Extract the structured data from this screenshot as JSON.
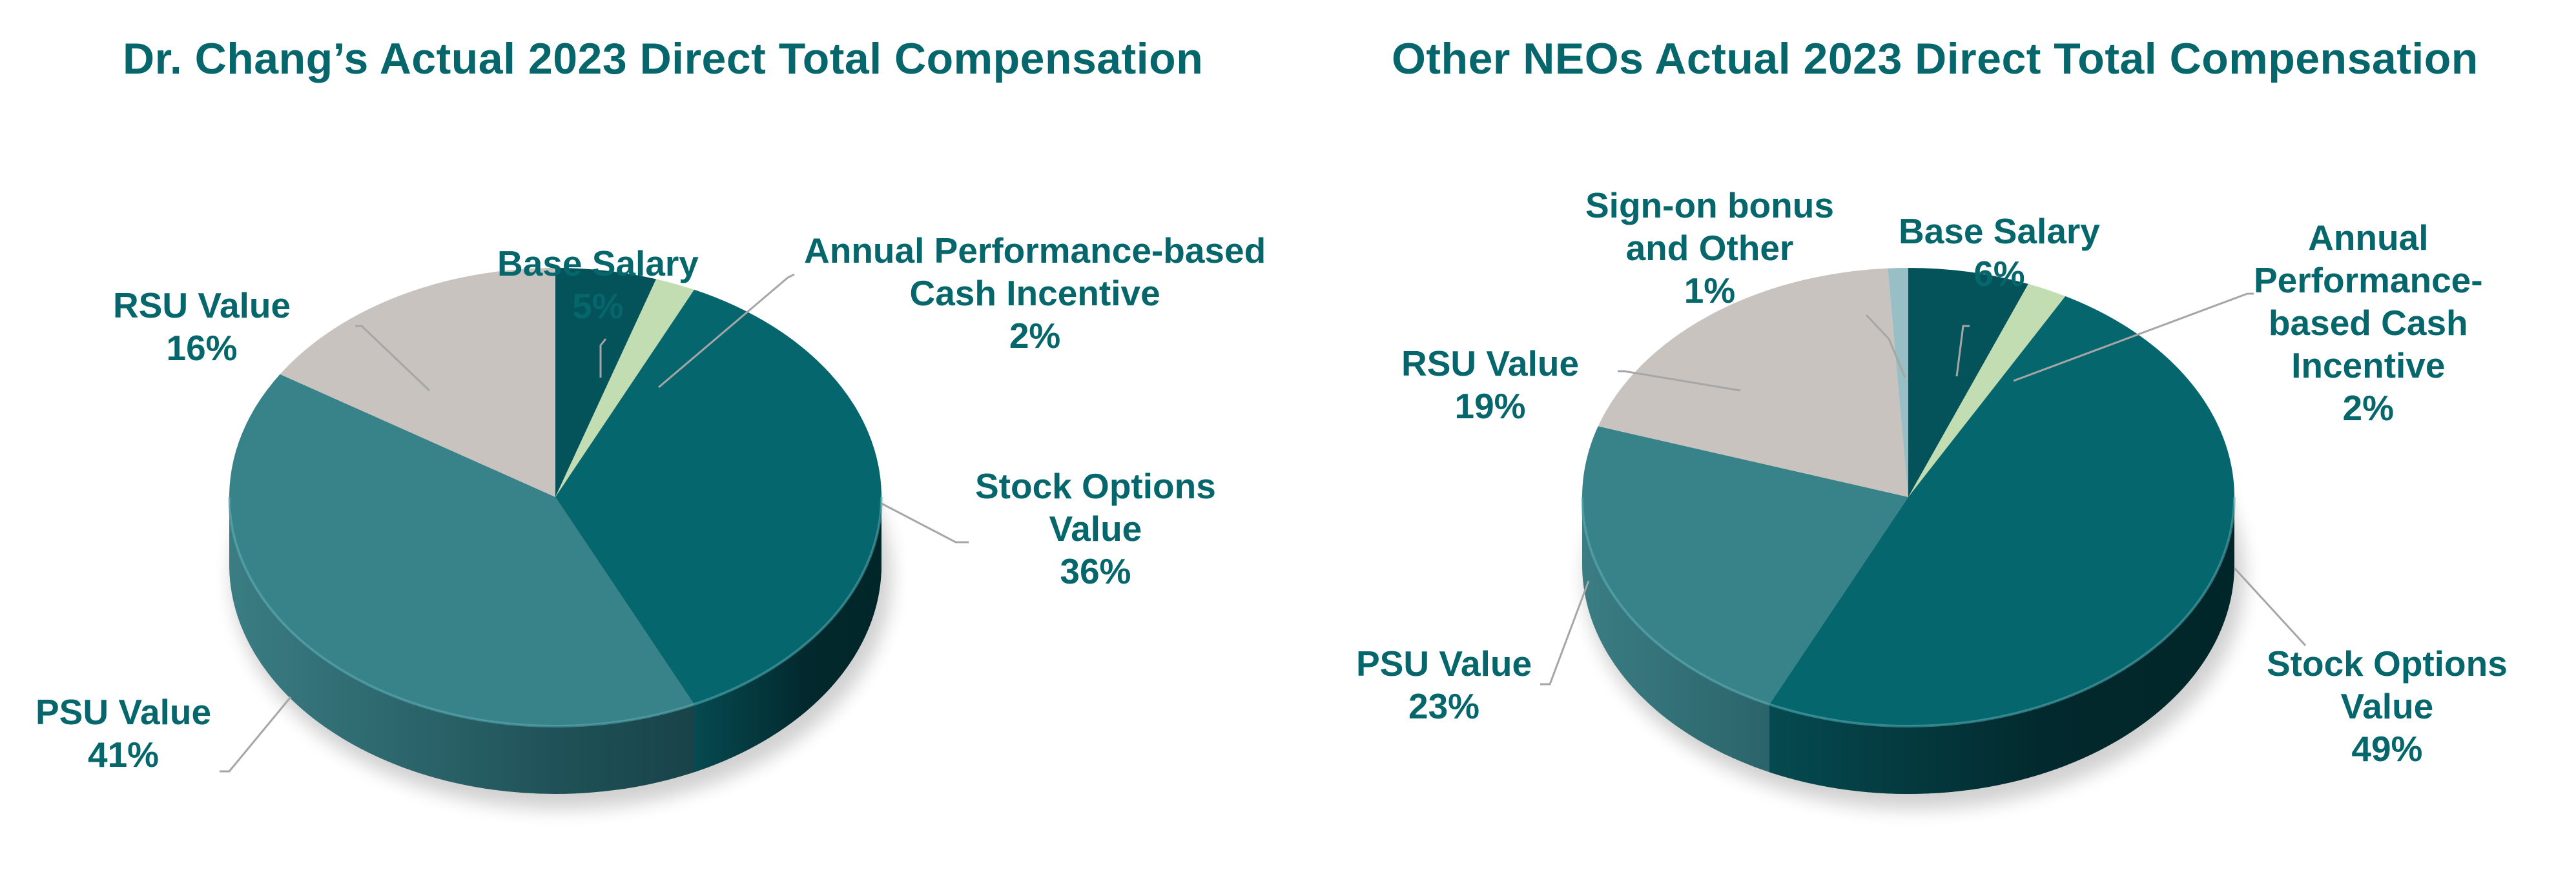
{
  "colors": {
    "title": "#05666b",
    "label": "#05666b",
    "base_salary": "#04525a",
    "annual_incentive": "#c3ddb3",
    "stock_options": "#06666d",
    "psu": "#38828a",
    "rsu": "#c9c3bf",
    "sign_on": "#97bfc5",
    "leader": "#a6a6a6"
  },
  "left": {
    "title": "Dr. Chang’s Actual 2023 Direct Total Compensation",
    "labels": {
      "base_salary": {
        "name": "Base Salary",
        "pct": "5%"
      },
      "annual_incentive": {
        "line1": "Annual Performance-based",
        "line2": "Cash Incentive",
        "pct": "2%"
      },
      "stock_options": {
        "line1": "Stock Options",
        "line2": "Value",
        "pct": "36%"
      },
      "psu": {
        "name": "PSU Value",
        "pct": "41%"
      },
      "rsu": {
        "name": "RSU Value",
        "pct": "16%"
      }
    }
  },
  "right": {
    "title": "Other NEOs Actual 2023 Direct Total Compensation",
    "labels": {
      "sign_on": {
        "line1": "Sign-on bonus",
        "line2": "and Other",
        "pct": "1%"
      },
      "base_salary": {
        "name": "Base Salary",
        "pct": "6%"
      },
      "annual_incentive": {
        "line1": "Annual",
        "line2": "Performance-",
        "line3": "based Cash",
        "line4": "Incentive",
        "pct": "2%"
      },
      "stock_options": {
        "line1": "Stock Options",
        "line2": "Value",
        "pct": "49%"
      },
      "psu": {
        "name": "PSU Value",
        "pct": "23%"
      },
      "rsu": {
        "name": "RSU Value",
        "pct": "19%"
      }
    }
  },
  "chart_data": [
    {
      "type": "pie",
      "title": "Dr. Chang’s Actual 2023 Direct Total Compensation",
      "categories": [
        "Base Salary",
        "Annual Performance-based Cash Incentive",
        "Stock Options Value",
        "PSU Value",
        "RSU Value"
      ],
      "values": [
        5,
        2,
        36,
        41,
        16
      ],
      "unit": "%",
      "style": "3d",
      "start_angle": "12 o'clock, clockwise"
    },
    {
      "type": "pie",
      "title": "Other NEOs Actual 2023 Direct Total Compensation",
      "categories": [
        "Base Salary",
        "Annual Performance-based Cash Incentive",
        "Stock Options Value",
        "PSU Value",
        "RSU Value",
        "Sign-on bonus and Other"
      ],
      "values": [
        6,
        2,
        49,
        23,
        19,
        1
      ],
      "unit": "%",
      "style": "3d",
      "start_angle": "12 o'clock, clockwise"
    }
  ]
}
